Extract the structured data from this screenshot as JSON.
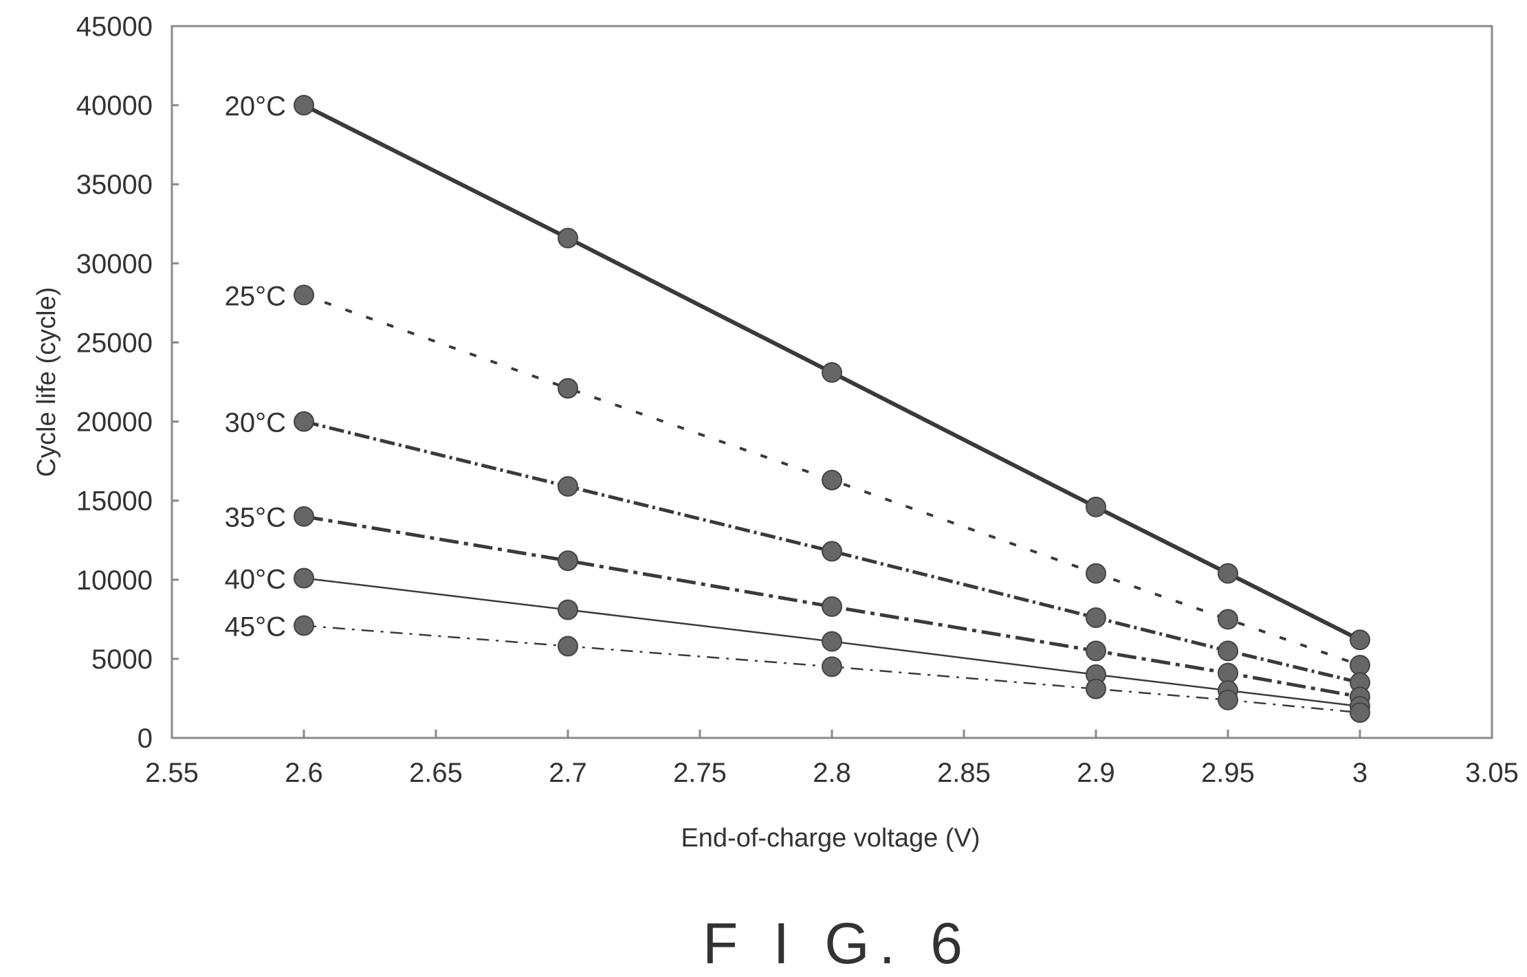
{
  "caption": "F I G. 6",
  "chart_data": {
    "type": "line",
    "title": "",
    "xlabel": "End-of-charge voltage (V)",
    "ylabel": "Cycle life (cycle)",
    "xlim": [
      2.55,
      3.05
    ],
    "ylim": [
      0,
      45000
    ],
    "x_ticks": [
      "2.55",
      "2.6",
      "2.65",
      "2.7",
      "2.75",
      "2.8",
      "2.85",
      "2.9",
      "2.95",
      "3",
      "3.05"
    ],
    "y_ticks": [
      "0",
      "5000",
      "10000",
      "15000",
      "20000",
      "25000",
      "30000",
      "35000",
      "40000",
      "45000"
    ],
    "grid": false,
    "legend": "labels at left end of each line",
    "x": [
      2.6,
      2.7,
      2.8,
      2.9,
      2.95,
      3.0
    ],
    "series": [
      {
        "name": "20°C",
        "values": [
          40000,
          31600,
          23100,
          14600,
          10400,
          6200
        ],
        "style": "solid-thick"
      },
      {
        "name": "25°C",
        "values": [
          28000,
          22100,
          16300,
          10400,
          7500,
          4600
        ],
        "style": "dashed"
      },
      {
        "name": "30°C",
        "values": [
          20000,
          15900,
          11800,
          7600,
          5500,
          3500
        ],
        "style": "dense-dashed"
      },
      {
        "name": "35°C",
        "values": [
          14000,
          11200,
          8300,
          5500,
          4100,
          2600
        ],
        "style": "dash-dot"
      },
      {
        "name": "40°C",
        "values": [
          10100,
          8100,
          6100,
          4000,
          3000,
          2000
        ],
        "style": "solid-thin"
      },
      {
        "name": "45°C",
        "values": [
          7100,
          5800,
          4500,
          3100,
          2400,
          1600
        ],
        "style": "thin-dashed"
      }
    ],
    "colors": {
      "line": "#3a3a3a",
      "marker": "#666666",
      "frame": "#888888"
    }
  }
}
